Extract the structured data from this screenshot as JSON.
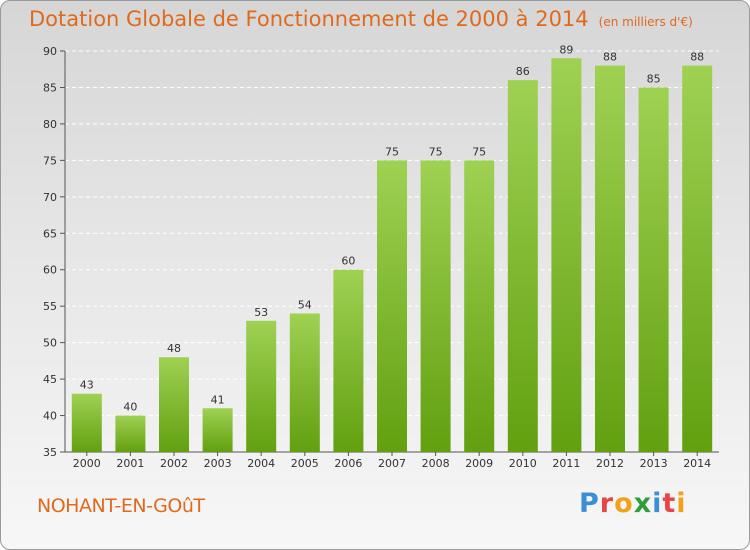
{
  "title": "Dotation Globale de Fonctionnement de 2000 à 2014",
  "subtitle": "(en milliers d'€)",
  "commune": "NOHANT-EN-GOûT",
  "logo": {
    "text": "Proxiti",
    "letters": [
      {
        "char": "P",
        "color": "#3a8fd6"
      },
      {
        "char": "r",
        "color": "#e64646"
      },
      {
        "char": "o",
        "color": "#f2a21a"
      },
      {
        "char": "x",
        "color": "#2e9e3a"
      },
      {
        "char": "i",
        "color": "#3a8fd6"
      },
      {
        "char": "t",
        "color": "#e64646"
      },
      {
        "char": "i",
        "color": "#f2a21a"
      }
    ]
  },
  "colors": {
    "title": "#e06a1c",
    "bar_top": "#9fd153",
    "bar_bottom": "#62a010"
  },
  "chart_data": {
    "type": "bar",
    "categories": [
      "2000",
      "2001",
      "2002",
      "2003",
      "2004",
      "2005",
      "2006",
      "2007",
      "2008",
      "2009",
      "2010",
      "2011",
      "2012",
      "2013",
      "2014"
    ],
    "values": [
      43,
      40,
      48,
      41,
      53,
      54,
      60,
      75,
      75,
      75,
      86,
      89,
      88,
      85,
      88
    ],
    "ylim": [
      35,
      90
    ],
    "yticks": [
      35,
      40,
      45,
      50,
      55,
      60,
      65,
      70,
      75,
      80,
      85,
      90
    ],
    "grid": true,
    "data_labels": true
  }
}
